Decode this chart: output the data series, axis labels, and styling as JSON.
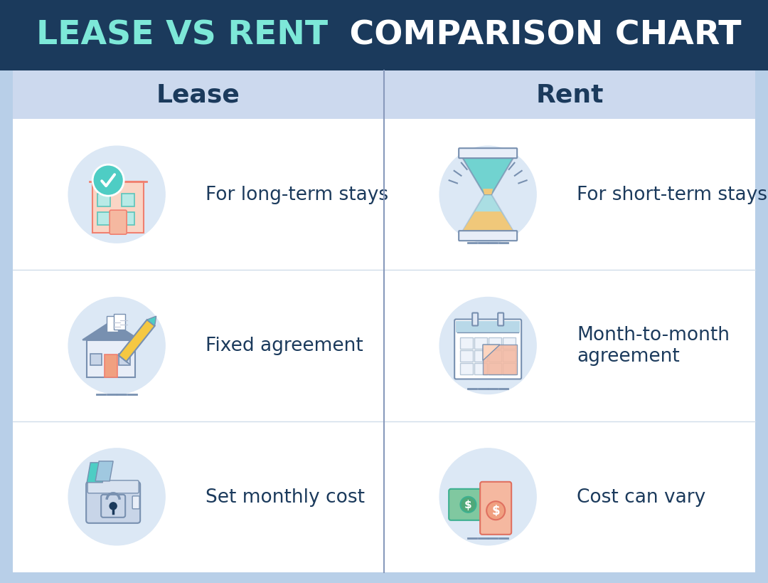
{
  "title_part1": "LEASE VS RENT",
  "title_part2": " COMPARISON CHART",
  "title_bg": "#1b3a5c",
  "title_color1": "#7de8d8",
  "title_color2": "#ffffff",
  "title_fontsize": 34,
  "header_bg": "#ccd9ee",
  "body_bg": "#ffffff",
  "outer_bg": "#b8cfe8",
  "col_header_color": "#1b3a5c",
  "col_header_fontsize": 26,
  "lease_header": "Lease",
  "rent_header": "Rent",
  "lease_items": [
    "For long-term stays",
    "Fixed agreement",
    "Set monthly cost"
  ],
  "rent_items": [
    "For short-term stays",
    "Month-to-month\nagreement",
    "Cost can vary"
  ],
  "item_fontsize": 19,
  "divider_color": "#8899bb",
  "icon_bg_color": "#dce8f5",
  "teal": "#4ecdc4",
  "salmon": "#f08070",
  "blue_gray": "#7890b0",
  "dark_blue": "#1b3a5c",
  "text_color": "#1b3a5c"
}
